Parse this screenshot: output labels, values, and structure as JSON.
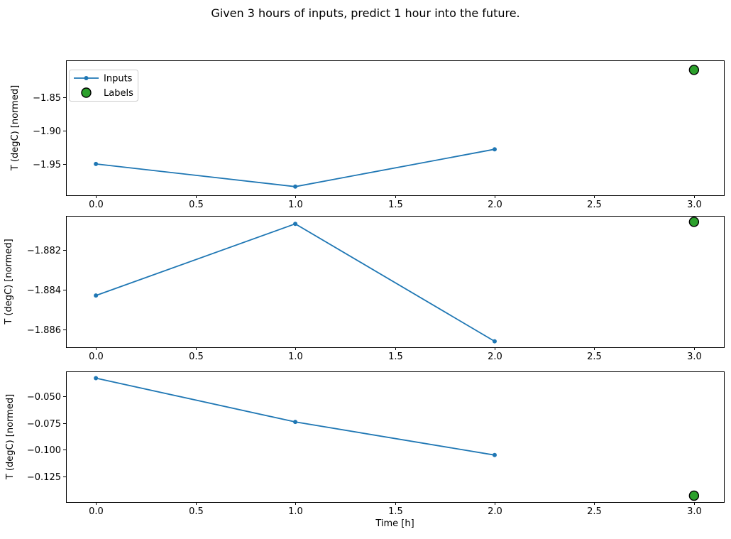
{
  "figure": {
    "title": "Given 3 hours of inputs, predict 1 hour into the future.",
    "background": "#ffffff"
  },
  "colors": {
    "inputs_line": "#1f77b4",
    "labels_fill": "#2ca02c",
    "labels_edge": "#000000",
    "axis": "#000000",
    "legend_border": "#cccccc"
  },
  "legend": {
    "entries": [
      {
        "label": "Inputs",
        "marker": "line-dot-icon",
        "color": "#1f77b4"
      },
      {
        "label": "Labels",
        "marker": "circle-icon",
        "color": "#2ca02c"
      }
    ],
    "position": "upper-left"
  },
  "chart_data": [
    {
      "type": "line",
      "title": "",
      "xlabel": "",
      "ylabel": "T (degC) [normed]",
      "xlim": [
        -0.15,
        3.15
      ],
      "ylim": [
        -1.997,
        -1.7947
      ],
      "xticks": [
        0.0,
        0.5,
        1.0,
        1.5,
        2.0,
        2.5,
        3.0
      ],
      "xtick_labels": [
        "0.0",
        "0.5",
        "1.0",
        "1.5",
        "2.0",
        "2.5",
        "3.0"
      ],
      "yticks": [
        -1.95,
        -1.9,
        -1.85
      ],
      "ytick_labels": [
        "−1.95",
        "−1.90",
        "−1.85"
      ],
      "grid": false,
      "legend_visible": true,
      "series": [
        {
          "name": "Inputs",
          "type": "line",
          "x": [
            0,
            1,
            2
          ],
          "y": [
            -1.95,
            -1.984,
            -1.928
          ]
        },
        {
          "name": "Labels",
          "type": "scatter",
          "x": [
            3
          ],
          "y": [
            -1.809
          ]
        }
      ]
    },
    {
      "type": "line",
      "title": "",
      "xlabel": "",
      "ylabel": "T (degC) [normed]",
      "xlim": [
        -0.15,
        3.15
      ],
      "ylim": [
        -1.8869,
        -1.8803
      ],
      "xticks": [
        0.0,
        0.5,
        1.0,
        1.5,
        2.0,
        2.5,
        3.0
      ],
      "xtick_labels": [
        "0.0",
        "0.5",
        "1.0",
        "1.5",
        "2.0",
        "2.5",
        "3.0"
      ],
      "yticks": [
        -1.886,
        -1.884,
        -1.882
      ],
      "ytick_labels": [
        "−1.886",
        "−1.884",
        "−1.882"
      ],
      "grid": false,
      "legend_visible": false,
      "series": [
        {
          "name": "Inputs",
          "type": "line",
          "x": [
            0,
            1,
            2
          ],
          "y": [
            -1.8843,
            -1.8807,
            -1.8866
          ]
        },
        {
          "name": "Labels",
          "type": "scatter",
          "x": [
            3
          ],
          "y": [
            -1.8806
          ]
        }
      ]
    },
    {
      "type": "line",
      "title": "",
      "xlabel": "Time [h]",
      "ylabel": "T (degC) [normed]",
      "xlim": [
        -0.15,
        3.15
      ],
      "ylim": [
        -0.149,
        -0.0267
      ],
      "xticks": [
        0.0,
        0.5,
        1.0,
        1.5,
        2.0,
        2.5,
        3.0
      ],
      "xtick_labels": [
        "0.0",
        "0.5",
        "1.0",
        "1.5",
        "2.0",
        "2.5",
        "3.0"
      ],
      "yticks": [
        -0.125,
        -0.1,
        -0.075,
        -0.05
      ],
      "ytick_labels": [
        "−0.125",
        "−0.100",
        "−0.075",
        "−0.050"
      ],
      "grid": false,
      "legend_visible": false,
      "series": [
        {
          "name": "Inputs",
          "type": "line",
          "x": [
            0,
            1,
            2
          ],
          "y": [
            -0.033,
            -0.074,
            -0.105
          ]
        },
        {
          "name": "Labels",
          "type": "scatter",
          "x": [
            3
          ],
          "y": [
            -0.143
          ]
        }
      ]
    }
  ]
}
